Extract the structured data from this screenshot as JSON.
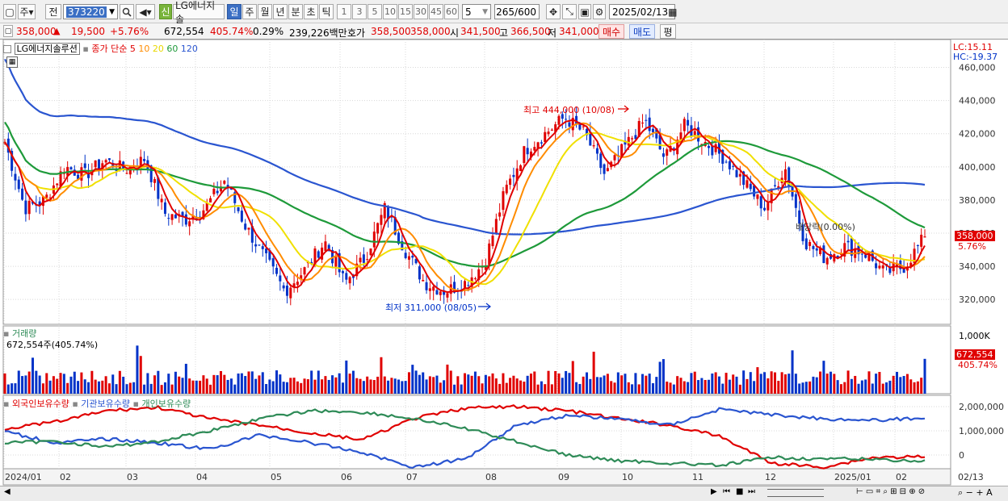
{
  "toolbar": {
    "market_label": "주",
    "prev_label": "전",
    "stock_code": "373220",
    "stock_name": "LG에너지솔",
    "new_badge": "신",
    "periods": [
      "일",
      "주",
      "월",
      "년",
      "분",
      "초",
      "틱"
    ],
    "active_period": "일",
    "intervals": [
      "1",
      "3",
      "5",
      "10",
      "15",
      "30",
      "45",
      "60"
    ],
    "interval_value": "5",
    "bar_count": "265",
    "bar_total": "/600",
    "date": "2025/02/13"
  },
  "infobar": {
    "price": "358,000",
    "change_arrow": "▲",
    "change": "19,500",
    "change_pct": "+5.76%",
    "volume": "672,554",
    "volume_ratio": "405.74%",
    "turnover": "0.29%",
    "amount": "239,226백만",
    "quote_label": "호가",
    "ask": "358,500",
    "bid": "358,000",
    "open_label": "시",
    "open": "341,500",
    "high_label": "고",
    "high": "366,500",
    "low_label": "저",
    "low": "341,000",
    "buy_label": "매수",
    "sell_label": "매도",
    "avg_label": "평"
  },
  "price_panel": {
    "name_label": "LG에너지솔루션",
    "ma_title": "종가 단순",
    "ma_periods": [
      "5",
      "10",
      "20",
      "60",
      "120"
    ],
    "lc_label": "LC:15.11",
    "hc_label": "HC:-19.37",
    "y_ticks": [
      "460,000",
      "440,000",
      "420,000",
      "400,000",
      "380,000",
      "360,000",
      "340,000",
      "320,000"
    ],
    "high_annotation": "최고 444,000 (10/08)",
    "low_annotation": "최저 311,000 (08/05)",
    "dividend_annotation": "배당락(0.00%)",
    "last_price_tag": "358,000",
    "last_pct_tag": "5.76%"
  },
  "volume_panel": {
    "title": "거래량",
    "value_label": "672,554주(405.74%)",
    "y_tick": "1,000K",
    "last_value_tag": "672,554",
    "last_pct_tag": "405.74%"
  },
  "holdings_panel": {
    "series_labels": [
      "외국인보유수량",
      "기관보유수량",
      "개인보유수량"
    ],
    "y_ticks": [
      "2,000,000",
      "1,000,000",
      "0"
    ]
  },
  "x_axis": {
    "labels": [
      "2024/01",
      "02",
      "03",
      "04",
      "05",
      "06",
      "07",
      "08",
      "09",
      "10",
      "11",
      "12",
      "2025/01",
      "02"
    ],
    "end_label": "02/13"
  },
  "colors": {
    "up": "#e00000",
    "down": "#0032c8",
    "ma5": "#e00000",
    "ma10": "#ff8c00",
    "ma20": "#f0e000",
    "ma60": "#1e9a3a",
    "ma120": "#2a55d0",
    "foreign": "#e00000",
    "institution": "#2a55d0",
    "individual": "#2e8b57"
  },
  "chart_data": {
    "type": "candlestick",
    "price_range": [
      305000,
      470000
    ],
    "anchor_prices": [
      415000,
      375000,
      380000,
      400000,
      395000,
      404000,
      398000,
      405000,
      372000,
      368000,
      375000,
      392000,
      365000,
      345000,
      325000,
      338000,
      355000,
      330000,
      345000,
      375000,
      350000,
      330000,
      325000,
      330000,
      342000,
      385000,
      410000,
      420000,
      430000,
      420000,
      395000,
      412000,
      428000,
      405000,
      425000,
      415000,
      405000,
      390000,
      375000,
      400000,
      355000,
      345000,
      352000,
      348000,
      336000,
      340000,
      358000
    ],
    "holdings": {
      "foreign_range": [
        "0",
        "2,000,000"
      ],
      "institution_range": [
        "0",
        "2,000,000"
      ],
      "individual_range": [
        "0",
        "2,000,000"
      ]
    }
  }
}
